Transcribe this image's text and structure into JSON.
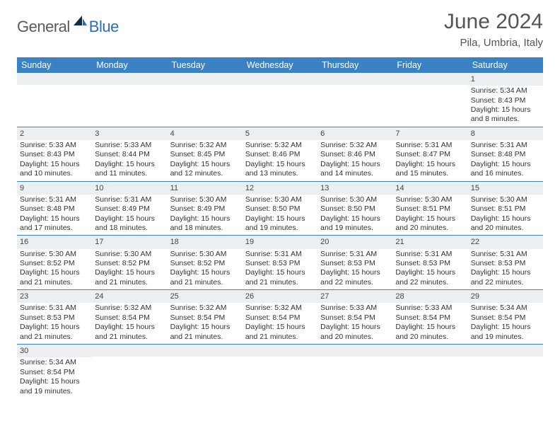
{
  "brand": {
    "part1": "General",
    "part2": "Blue"
  },
  "title": "June 2024",
  "location": "Pila, Umbria, Italy",
  "colors": {
    "header_bg": "#3b82c4",
    "header_text": "#ffffff",
    "band_bg": "#eceff1",
    "divider": "#3b82c4",
    "body_text": "#333333",
    "brand_gray": "#5a5a5a",
    "brand_blue": "#2a6fb5"
  },
  "day_labels": [
    "Sunday",
    "Monday",
    "Tuesday",
    "Wednesday",
    "Thursday",
    "Friday",
    "Saturday"
  ],
  "weeks": [
    [
      null,
      null,
      null,
      null,
      null,
      null,
      {
        "n": "1",
        "sr": "Sunrise: 5:34 AM",
        "ss": "Sunset: 8:43 PM",
        "dl": "Daylight: 15 hours and 8 minutes."
      }
    ],
    [
      {
        "n": "2",
        "sr": "Sunrise: 5:33 AM",
        "ss": "Sunset: 8:43 PM",
        "dl": "Daylight: 15 hours and 10 minutes."
      },
      {
        "n": "3",
        "sr": "Sunrise: 5:33 AM",
        "ss": "Sunset: 8:44 PM",
        "dl": "Daylight: 15 hours and 11 minutes."
      },
      {
        "n": "4",
        "sr": "Sunrise: 5:32 AM",
        "ss": "Sunset: 8:45 PM",
        "dl": "Daylight: 15 hours and 12 minutes."
      },
      {
        "n": "5",
        "sr": "Sunrise: 5:32 AM",
        "ss": "Sunset: 8:46 PM",
        "dl": "Daylight: 15 hours and 13 minutes."
      },
      {
        "n": "6",
        "sr": "Sunrise: 5:32 AM",
        "ss": "Sunset: 8:46 PM",
        "dl": "Daylight: 15 hours and 14 minutes."
      },
      {
        "n": "7",
        "sr": "Sunrise: 5:31 AM",
        "ss": "Sunset: 8:47 PM",
        "dl": "Daylight: 15 hours and 15 minutes."
      },
      {
        "n": "8",
        "sr": "Sunrise: 5:31 AM",
        "ss": "Sunset: 8:48 PM",
        "dl": "Daylight: 15 hours and 16 minutes."
      }
    ],
    [
      {
        "n": "9",
        "sr": "Sunrise: 5:31 AM",
        "ss": "Sunset: 8:48 PM",
        "dl": "Daylight: 15 hours and 17 minutes."
      },
      {
        "n": "10",
        "sr": "Sunrise: 5:31 AM",
        "ss": "Sunset: 8:49 PM",
        "dl": "Daylight: 15 hours and 18 minutes."
      },
      {
        "n": "11",
        "sr": "Sunrise: 5:30 AM",
        "ss": "Sunset: 8:49 PM",
        "dl": "Daylight: 15 hours and 18 minutes."
      },
      {
        "n": "12",
        "sr": "Sunrise: 5:30 AM",
        "ss": "Sunset: 8:50 PM",
        "dl": "Daylight: 15 hours and 19 minutes."
      },
      {
        "n": "13",
        "sr": "Sunrise: 5:30 AM",
        "ss": "Sunset: 8:50 PM",
        "dl": "Daylight: 15 hours and 19 minutes."
      },
      {
        "n": "14",
        "sr": "Sunrise: 5:30 AM",
        "ss": "Sunset: 8:51 PM",
        "dl": "Daylight: 15 hours and 20 minutes."
      },
      {
        "n": "15",
        "sr": "Sunrise: 5:30 AM",
        "ss": "Sunset: 8:51 PM",
        "dl": "Daylight: 15 hours and 20 minutes."
      }
    ],
    [
      {
        "n": "16",
        "sr": "Sunrise: 5:30 AM",
        "ss": "Sunset: 8:52 PM",
        "dl": "Daylight: 15 hours and 21 minutes."
      },
      {
        "n": "17",
        "sr": "Sunrise: 5:30 AM",
        "ss": "Sunset: 8:52 PM",
        "dl": "Daylight: 15 hours and 21 minutes."
      },
      {
        "n": "18",
        "sr": "Sunrise: 5:30 AM",
        "ss": "Sunset: 8:52 PM",
        "dl": "Daylight: 15 hours and 21 minutes."
      },
      {
        "n": "19",
        "sr": "Sunrise: 5:31 AM",
        "ss": "Sunset: 8:53 PM",
        "dl": "Daylight: 15 hours and 21 minutes."
      },
      {
        "n": "20",
        "sr": "Sunrise: 5:31 AM",
        "ss": "Sunset: 8:53 PM",
        "dl": "Daylight: 15 hours and 22 minutes."
      },
      {
        "n": "21",
        "sr": "Sunrise: 5:31 AM",
        "ss": "Sunset: 8:53 PM",
        "dl": "Daylight: 15 hours and 22 minutes."
      },
      {
        "n": "22",
        "sr": "Sunrise: 5:31 AM",
        "ss": "Sunset: 8:53 PM",
        "dl": "Daylight: 15 hours and 22 minutes."
      }
    ],
    [
      {
        "n": "23",
        "sr": "Sunrise: 5:31 AM",
        "ss": "Sunset: 8:53 PM",
        "dl": "Daylight: 15 hours and 21 minutes."
      },
      {
        "n": "24",
        "sr": "Sunrise: 5:32 AM",
        "ss": "Sunset: 8:54 PM",
        "dl": "Daylight: 15 hours and 21 minutes."
      },
      {
        "n": "25",
        "sr": "Sunrise: 5:32 AM",
        "ss": "Sunset: 8:54 PM",
        "dl": "Daylight: 15 hours and 21 minutes."
      },
      {
        "n": "26",
        "sr": "Sunrise: 5:32 AM",
        "ss": "Sunset: 8:54 PM",
        "dl": "Daylight: 15 hours and 21 minutes."
      },
      {
        "n": "27",
        "sr": "Sunrise: 5:33 AM",
        "ss": "Sunset: 8:54 PM",
        "dl": "Daylight: 15 hours and 20 minutes."
      },
      {
        "n": "28",
        "sr": "Sunrise: 5:33 AM",
        "ss": "Sunset: 8:54 PM",
        "dl": "Daylight: 15 hours and 20 minutes."
      },
      {
        "n": "29",
        "sr": "Sunrise: 5:34 AM",
        "ss": "Sunset: 8:54 PM",
        "dl": "Daylight: 15 hours and 19 minutes."
      }
    ],
    [
      {
        "n": "30",
        "sr": "Sunrise: 5:34 AM",
        "ss": "Sunset: 8:54 PM",
        "dl": "Daylight: 15 hours and 19 minutes."
      },
      null,
      null,
      null,
      null,
      null,
      null
    ]
  ]
}
